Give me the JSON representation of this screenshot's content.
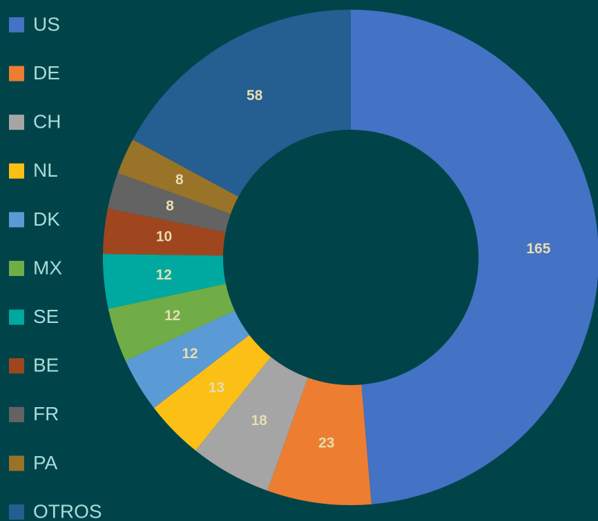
{
  "chart_data": {
    "type": "donut",
    "categories": [
      "US",
      "DE",
      "CH",
      "NL",
      "DK",
      "MX",
      "SE",
      "BE",
      "FR",
      "PA",
      "OTROS"
    ],
    "values": [
      165,
      23,
      18,
      13,
      12,
      12,
      12,
      10,
      8,
      8,
      58
    ],
    "colors": [
      "#4472c4",
      "#ed7d31",
      "#a5a5a5",
      "#fbbf16",
      "#5b9bd5",
      "#70ad47",
      "#00a9a0",
      "#a0461f",
      "#636363",
      "#997328",
      "#255e91"
    ],
    "legend": "left"
  }
}
